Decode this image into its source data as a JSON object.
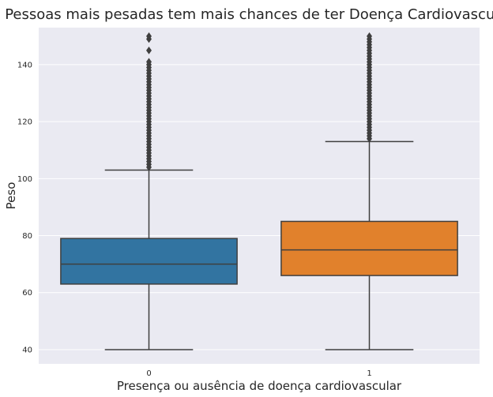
{
  "chart_data": {
    "type": "boxplot",
    "title": "Pessoas mais pesadas tem mais chances de ter Doença Cardiovascular",
    "xlabel": "Presença ou ausência de doença cardiovascular",
    "ylabel": "Peso",
    "categories": [
      "0",
      "1"
    ],
    "ylim": [
      35,
      153
    ],
    "yticks": [
      40,
      60,
      80,
      100,
      120,
      140
    ],
    "grid": true,
    "background": "#eaeaf2",
    "boxes": [
      {
        "category": "0",
        "color": "#3274a1",
        "whisker_low": 40,
        "q1": 63,
        "median": 70,
        "q3": 79,
        "whisker_high": 103,
        "outliers": [
          104,
          105,
          106,
          107,
          108,
          109,
          110,
          111,
          112,
          113,
          114,
          115,
          116,
          117,
          118,
          119,
          120,
          121,
          122,
          123,
          124,
          125,
          126,
          127,
          128,
          129,
          130,
          131,
          132,
          133,
          134,
          135,
          136,
          137,
          138,
          139,
          140,
          141,
          145,
          149,
          150
        ]
      },
      {
        "category": "1",
        "color": "#e1812c",
        "whisker_low": 40,
        "q1": 66,
        "median": 75,
        "q3": 85,
        "whisker_high": 113,
        "outliers": [
          114,
          115,
          116,
          117,
          118,
          119,
          120,
          121,
          122,
          123,
          124,
          125,
          126,
          127,
          128,
          129,
          130,
          131,
          132,
          133,
          134,
          135,
          136,
          137,
          138,
          139,
          140,
          141,
          142,
          143,
          144,
          145,
          146,
          147,
          148,
          149,
          150
        ]
      }
    ]
  }
}
